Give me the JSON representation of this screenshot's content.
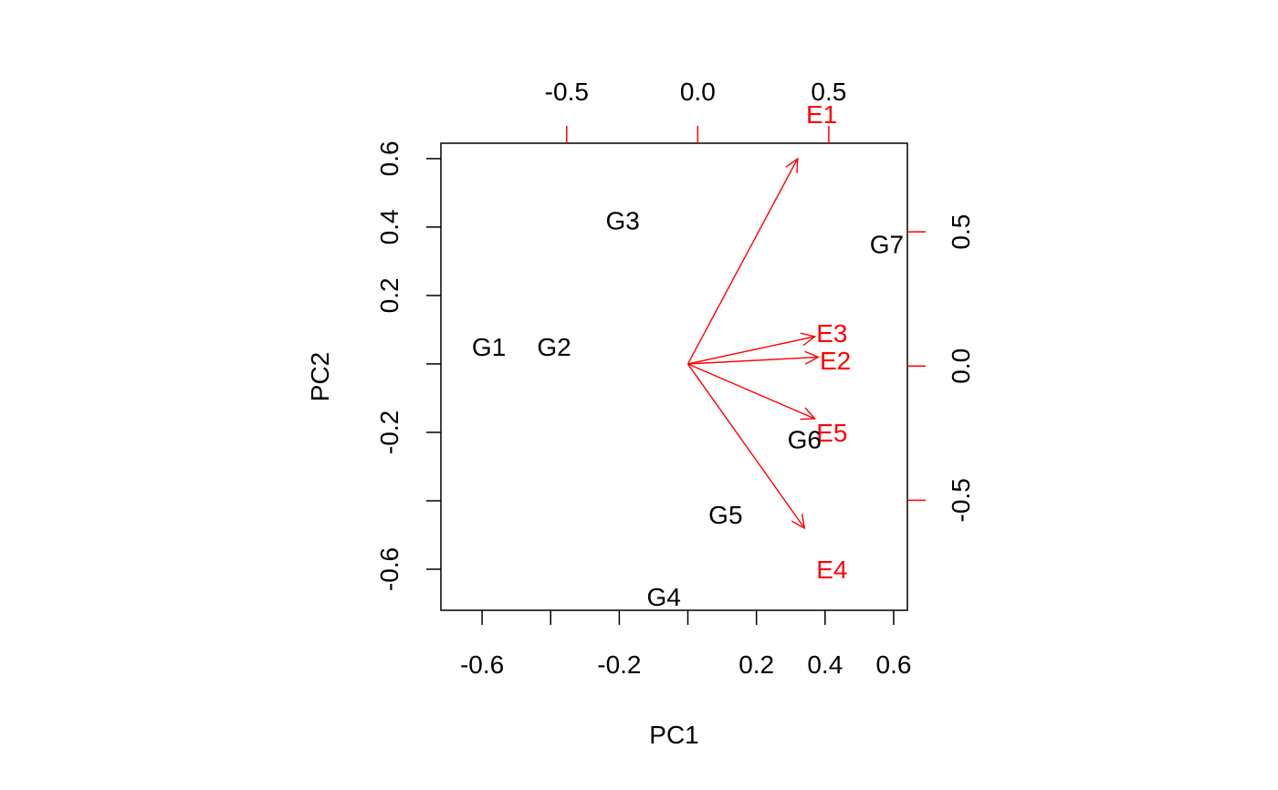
{
  "chart_data": {
    "type": "biplot",
    "xlabel": "PC1",
    "ylabel": "PC2",
    "xlim": [
      -0.72,
      0.64
    ],
    "ylim": [
      -0.72,
      0.645
    ],
    "xticks": [
      -0.6,
      -0.2,
      0.2,
      0.4,
      0.6
    ],
    "xtick_labels": [
      "-0.6",
      "-0.2",
      "0.2",
      "0.4",
      "0.6"
    ],
    "xticks_unlabeled": [
      -0.4,
      0.0
    ],
    "yticks": [
      -0.6,
      -0.2,
      0.2,
      0.4,
      0.6
    ],
    "ytick_labels": [
      "-0.6",
      "-0.2",
      "0.2",
      "0.4",
      "0.6"
    ],
    "yticks_unlabeled": [
      -0.4,
      0.0
    ],
    "top_axis": {
      "lim": [
        -0.98,
        0.8
      ],
      "ticks": [
        -0.5,
        0.0,
        0.5
      ],
      "tick_labels": [
        "-0.5",
        "0.0",
        "0.5"
      ]
    },
    "right_axis": {
      "lim": [
        -0.91,
        0.83
      ],
      "ticks": [
        -0.5,
        0.0,
        0.5
      ],
      "tick_labels": [
        "-0.5",
        "0.0",
        "0.5"
      ]
    },
    "points": [
      {
        "label": "G1",
        "x": -0.58,
        "y": 0.05
      },
      {
        "label": "G2",
        "x": -0.39,
        "y": 0.05
      },
      {
        "label": "G3",
        "x": -0.19,
        "y": 0.42
      },
      {
        "label": "G4",
        "x": -0.07,
        "y": -0.68
      },
      {
        "label": "G5",
        "x": 0.11,
        "y": -0.44
      },
      {
        "label": "G6",
        "x": 0.34,
        "y": -0.22
      },
      {
        "label": "G7",
        "x": 0.58,
        "y": 0.35
      }
    ],
    "arrows": [
      {
        "label": "E1",
        "x": 0.32,
        "y": 0.6,
        "label_x": 0.39,
        "label_y": 0.73
      },
      {
        "label": "E2",
        "x": 0.38,
        "y": 0.02,
        "label_x": 0.43,
        "label_y": 0.01
      },
      {
        "label": "E3",
        "x": 0.37,
        "y": 0.08,
        "label_x": 0.42,
        "label_y": 0.09
      },
      {
        "label": "E4",
        "x": 0.34,
        "y": -0.48,
        "label_x": 0.42,
        "label_y": -0.6
      },
      {
        "label": "E5",
        "x": 0.37,
        "y": -0.16,
        "label_x": 0.42,
        "label_y": -0.2
      }
    ],
    "colors": {
      "points": "#000000",
      "arrows": "#ff0000",
      "axes": "#000000"
    }
  }
}
